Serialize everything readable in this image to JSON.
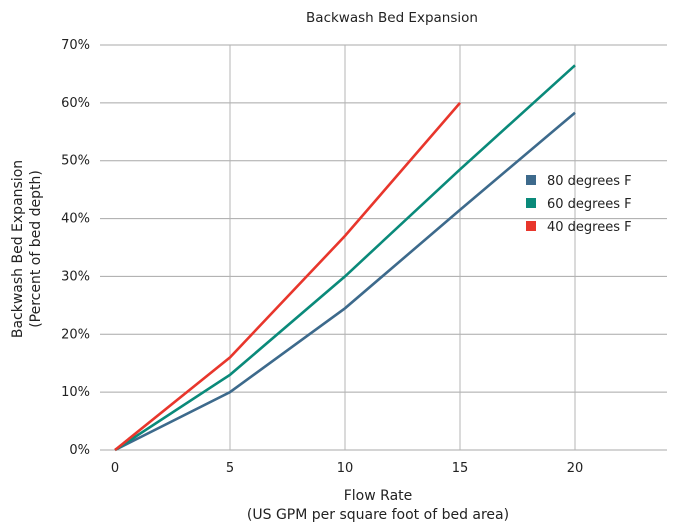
{
  "chart_data": {
    "type": "line",
    "title": "Backwash Bed Expansion",
    "xlabel": "Flow Rate",
    "xlabel_sub": "(US GPM per square foot of bed area)",
    "ylabel": "Backwash Bed Expansion",
    "ylabel_sub": "(Percent of bed depth)",
    "xlim": [
      0,
      24
    ],
    "ylim": [
      0,
      70
    ],
    "xticks": [
      0,
      5,
      10,
      15,
      20
    ],
    "xtick_labels": [
      "0",
      "5",
      "10",
      "15",
      "20"
    ],
    "yticks": [
      0,
      10,
      20,
      30,
      40,
      50,
      60,
      70
    ],
    "ytick_labels": [
      "0%",
      "10%",
      "20%",
      "30%",
      "40%",
      "50%",
      "60%",
      "70%"
    ],
    "grid": true,
    "legend_position": "right",
    "series": [
      {
        "name": "80 degrees F",
        "color": "#3d6a8c",
        "x": [
          0,
          5,
          10,
          15,
          20
        ],
        "y": [
          0,
          10,
          24.5,
          41.5,
          58.3
        ]
      },
      {
        "name": "60 degrees F",
        "color": "#0a8a7a",
        "x": [
          0,
          5,
          10,
          15,
          20
        ],
        "y": [
          0,
          13,
          30,
          48.5,
          66.5
        ]
      },
      {
        "name": "40 degrees F",
        "color": "#e8362c",
        "x": [
          0,
          5,
          10,
          15
        ],
        "y": [
          0,
          16,
          37,
          60
        ]
      }
    ]
  }
}
